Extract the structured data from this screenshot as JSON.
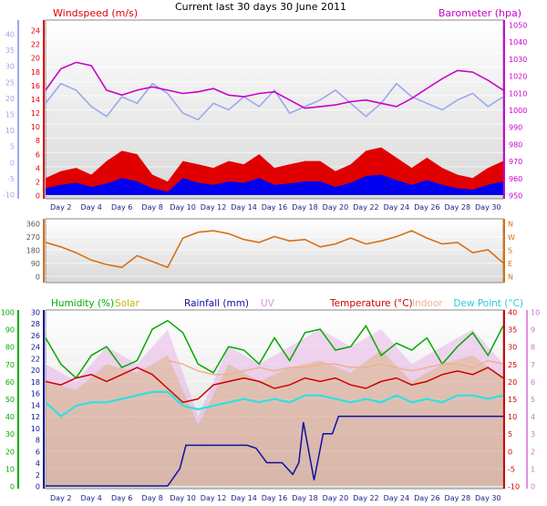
{
  "header": {
    "title": "Current last 30 days 30 June 2011"
  },
  "chart_data": [
    {
      "type": "line",
      "panel": "wind-barometer",
      "left_axis": {
        "label": "Windspeed (m/s)",
        "color": "#e00000",
        "ticks": [
          "24",
          "22",
          "20",
          "18",
          "16",
          "14",
          "12",
          "10",
          "8",
          "6",
          "4",
          "2",
          "0"
        ],
        "range": [
          0,
          25
        ]
      },
      "outer_left_axis": {
        "color": "#9aa8ee",
        "ticks": [
          "40",
          "35",
          "30",
          "25",
          "20",
          "15",
          "10",
          "5",
          "0",
          "-5",
          "-10"
        ],
        "range": [
          -10,
          42
        ]
      },
      "right_axis": {
        "label": "Barometer (hpa)",
        "color": "#cc00cc",
        "ticks": [
          "1050",
          "1040",
          "1030",
          "1020",
          "1010",
          "1000",
          "990",
          "980",
          "970",
          "960",
          "950"
        ],
        "range": [
          948,
          1052
        ]
      },
      "x_ticks": [
        "Day 2",
        "Day 4",
        "Day 6",
        "Day 8",
        "Day 10",
        "Day 12",
        "Day 14",
        "Day 16",
        "Day 18",
        "Day 20",
        "Day 22",
        "Day 24",
        "Day 26",
        "Day 28",
        "Day 30"
      ],
      "x_range": [
        1,
        31
      ],
      "series": [
        {
          "color": "#e00000",
          "style": "gust-area",
          "x": [
            1,
            2,
            3,
            4,
            5,
            6,
            7,
            8,
            9,
            10,
            11,
            12,
            13,
            14,
            15,
            16,
            17,
            18,
            19,
            20,
            21,
            22,
            23,
            24,
            25,
            26,
            27,
            28,
            29,
            30,
            31
          ],
          "values": [
            2.5,
            3.5,
            4,
            3,
            5,
            6.5,
            6,
            3,
            2,
            5,
            4.5,
            4,
            5,
            4.5,
            6,
            4,
            4.5,
            5,
            5,
            3.5,
            4.5,
            6.5,
            7,
            5.5,
            4,
            5.5,
            4,
            3,
            2.5,
            4,
            5
          ]
        },
        {
          "color": "#0000ee",
          "style": "average-area",
          "x": [
            1,
            2,
            3,
            4,
            5,
            6,
            7,
            8,
            9,
            10,
            11,
            12,
            13,
            14,
            15,
            16,
            17,
            18,
            19,
            20,
            21,
            22,
            23,
            24,
            25,
            26,
            27,
            28,
            29,
            30,
            31
          ],
          "values": [
            1,
            1.5,
            1.8,
            1.2,
            1.7,
            2.5,
            2,
            1,
            0.5,
            2.5,
            1.8,
            1.5,
            2,
            1.8,
            2.5,
            1.5,
            1.7,
            2,
            2,
            1.2,
            1.8,
            2.8,
            3,
            2.2,
            1.5,
            2.2,
            1.5,
            1,
            0.8,
            1.5,
            2
          ]
        },
        {
          "color": "#9aa8ee",
          "style": "line",
          "x": [
            1,
            2,
            3,
            4,
            5,
            6,
            7,
            8,
            9,
            10,
            11,
            12,
            13,
            14,
            15,
            16,
            17,
            18,
            19,
            20,
            21,
            22,
            23,
            24,
            25,
            26,
            27,
            28,
            29,
            30,
            31
          ],
          "values": [
            18,
            24,
            22,
            17,
            14,
            20,
            18,
            24,
            21,
            15,
            13,
            18,
            16,
            20,
            17,
            22,
            15,
            17,
            19,
            22,
            18,
            14,
            18,
            24,
            20,
            18,
            16,
            19,
            21,
            17,
            20
          ]
        },
        {
          "color": "#cc00cc",
          "style": "line",
          "x": [
            1,
            2,
            3,
            4,
            5,
            6,
            7,
            8,
            9,
            10,
            11,
            12,
            13,
            14,
            15,
            16,
            17,
            18,
            19,
            20,
            21,
            22,
            23,
            24,
            25,
            26,
            27,
            28,
            29,
            30,
            31
          ],
          "values": [
            1012,
            1025,
            1029,
            1027,
            1012,
            1009,
            1012,
            1014,
            1012,
            1010,
            1011,
            1013,
            1009,
            1008,
            1010,
            1011,
            1006,
            1001,
            1002,
            1003,
            1005,
            1006,
            1004,
            1002,
            1007,
            1013,
            1019,
            1024,
            1023,
            1018,
            1012
          ]
        }
      ]
    },
    {
      "type": "line",
      "panel": "wind-direction",
      "left_axis": {
        "ticks": [
          "360",
          "270",
          "180",
          "90",
          "0"
        ],
        "range": [
          0,
          360
        ]
      },
      "right_axis": {
        "ticks": [
          "N",
          "W",
          "S",
          "E",
          "N"
        ]
      },
      "x_ticks": [
        "Day 2",
        "Day 4",
        "Day 6",
        "Day 8",
        "Day 10",
        "Day 12",
        "Day 14",
        "Day 16",
        "Day 18",
        "Day 20",
        "Day 22",
        "Day 24",
        "Day 26",
        "Day 28",
        "Day 30"
      ],
      "x_range": [
        1,
        31
      ],
      "series": [
        {
          "color": "#d97010",
          "style": "line",
          "x": [
            1,
            2,
            3,
            4,
            5,
            6,
            7,
            8,
            9,
            10,
            11,
            12,
            13,
            14,
            15,
            16,
            17,
            18,
            19,
            20,
            21,
            22,
            23,
            24,
            25,
            26,
            27,
            28,
            29,
            30,
            31
          ],
          "values": [
            230,
            200,
            160,
            110,
            80,
            60,
            140,
            100,
            60,
            260,
            300,
            310,
            290,
            250,
            230,
            270,
            240,
            250,
            200,
            220,
            260,
            220,
            240,
            270,
            310,
            260,
            220,
            230,
            160,
            180,
            90
          ]
        }
      ]
    },
    {
      "type": "line",
      "panel": "temperature-humidity-rain",
      "labels": {
        "humidity": "Humidity (%)",
        "solar": "Solar",
        "rainfall": "Rainfall (mm)",
        "uv": "UV",
        "temperature": "Temperature (°C)",
        "indoor": "Indoor",
        "dew_point": "Dew Point (°C)"
      },
      "colors": {
        "humidity": "#00aa00",
        "solar": "#c8b400",
        "rainfall": "#1010a0",
        "uv": "#e090e0",
        "temperature": "#cc0000",
        "indoor": "#f0b090",
        "dew_point": "#30e0e0"
      },
      "humidity_axis": {
        "ticks": [
          "100",
          "90",
          "80",
          "70",
          "60",
          "50",
          "40",
          "30",
          "20",
          "10",
          "0"
        ],
        "range": [
          0,
          100
        ]
      },
      "rain_axis": {
        "ticks": [
          "30",
          "28",
          "26",
          "24",
          "22",
          "20",
          "18",
          "16",
          "14",
          "12",
          "10",
          "8",
          "6",
          "4",
          "2",
          "0"
        ],
        "range": [
          0,
          30
        ]
      },
      "temperature_axis": {
        "ticks": [
          "40",
          "35",
          "30",
          "25",
          "20",
          "15",
          "10",
          "5",
          "0",
          "-5",
          "-10"
        ],
        "range": [
          -10,
          40
        ]
      },
      "uv_axis": {
        "ticks": [
          "10",
          "9",
          "8",
          "7",
          "6",
          "5",
          "4",
          "3",
          "2",
          "1",
          "0"
        ],
        "range": [
          0,
          10
        ]
      },
      "x_ticks": [
        "Day 2",
        "Day 4",
        "Day 6",
        "Day 8",
        "Day 10",
        "Day 12",
        "Day 14",
        "Day 16",
        "Day 18",
        "Day 20",
        "Day 22",
        "Day 24",
        "Day 26",
        "Day 28",
        "Day 30"
      ],
      "x_range": [
        1,
        31
      ],
      "series": [
        {
          "name": "Humidity (%)",
          "color": "#00aa00",
          "x": [
            1,
            2,
            3,
            4,
            5,
            6,
            7,
            8,
            9,
            10,
            11,
            12,
            13,
            14,
            15,
            16,
            17,
            18,
            19,
            20,
            21,
            22,
            23,
            24,
            25,
            26,
            27,
            28,
            29,
            30,
            31
          ],
          "values": [
            85,
            70,
            62,
            75,
            80,
            68,
            72,
            90,
            95,
            88,
            70,
            65,
            80,
            78,
            70,
            85,
            72,
            88,
            90,
            78,
            80,
            92,
            75,
            82,
            78,
            85,
            70,
            80,
            88,
            75,
            92
          ]
        },
        {
          "name": "Temperature (°C)",
          "color": "#cc0000",
          "x": [
            1,
            2,
            3,
            4,
            5,
            6,
            7,
            8,
            9,
            10,
            11,
            12,
            13,
            14,
            15,
            16,
            17,
            18,
            19,
            20,
            21,
            22,
            23,
            24,
            25,
            26,
            27,
            28,
            29,
            30,
            31
          ],
          "values": [
            20,
            19,
            21,
            22,
            20,
            22,
            24,
            22,
            18,
            14,
            15,
            19,
            20,
            21,
            20,
            18,
            19,
            21,
            20,
            21,
            19,
            18,
            20,
            21,
            19,
            20,
            22,
            23,
            22,
            24,
            21
          ]
        },
        {
          "name": "Dew Point (°C)",
          "color": "#30e0e0",
          "x": [
            1,
            2,
            3,
            4,
            5,
            6,
            7,
            8,
            9,
            10,
            11,
            12,
            13,
            14,
            15,
            16,
            17,
            18,
            19,
            20,
            21,
            22,
            23,
            24,
            25,
            26,
            27,
            28,
            29,
            30,
            31
          ],
          "values": [
            14,
            10,
            13,
            14,
            14,
            15,
            16,
            17,
            17,
            13,
            12,
            13,
            14,
            15,
            14,
            15,
            14,
            16,
            16,
            15,
            14,
            15,
            14,
            16,
            14,
            15,
            14,
            16,
            16,
            15,
            16
          ]
        },
        {
          "name": "Indoor",
          "color": "#f0b090",
          "x": [
            9,
            10,
            11,
            12,
            13,
            14,
            15,
            16,
            17,
            18,
            19,
            20,
            21,
            22,
            23,
            24,
            25,
            26,
            27,
            28,
            29,
            30,
            31
          ],
          "values": [
            26,
            25,
            23,
            22,
            22,
            23,
            24,
            23,
            24,
            24,
            25,
            25,
            24,
            24,
            25,
            24,
            23,
            24,
            25,
            25,
            24,
            26,
            25
          ]
        },
        {
          "name": "Rainfall (mm)",
          "color": "#1010a0",
          "x": [
            1,
            9,
            9.8,
            10.2,
            11,
            14.2,
            14.8,
            15.5,
            16.5,
            17.2,
            17.6,
            17.9,
            18.6,
            19.2,
            19.8,
            20.2,
            31
          ],
          "values": [
            0,
            0,
            3,
            7,
            7,
            7,
            6.5,
            4,
            4,
            2,
            4,
            11,
            1,
            9,
            9,
            12,
            12
          ]
        },
        {
          "name": "UV",
          "color": "#e090e0",
          "x": [
            1,
            3,
            5,
            7,
            9,
            11,
            13,
            15,
            17,
            19,
            21,
            23,
            25,
            27,
            29,
            31
          ],
          "values": [
            7,
            6,
            8,
            7,
            9,
            4,
            8,
            7,
            8,
            9,
            8,
            9,
            7,
            8,
            9,
            7
          ]
        },
        {
          "name": "Solar",
          "color": "#c8b400",
          "x": [
            1,
            3,
            5,
            7,
            9,
            11,
            13,
            15,
            17,
            19,
            21,
            23,
            25,
            27,
            29,
            31
          ],
          "values": [
            60,
            55,
            70,
            65,
            75,
            35,
            70,
            60,
            68,
            72,
            65,
            78,
            60,
            70,
            75,
            62
          ]
        }
      ]
    }
  ]
}
